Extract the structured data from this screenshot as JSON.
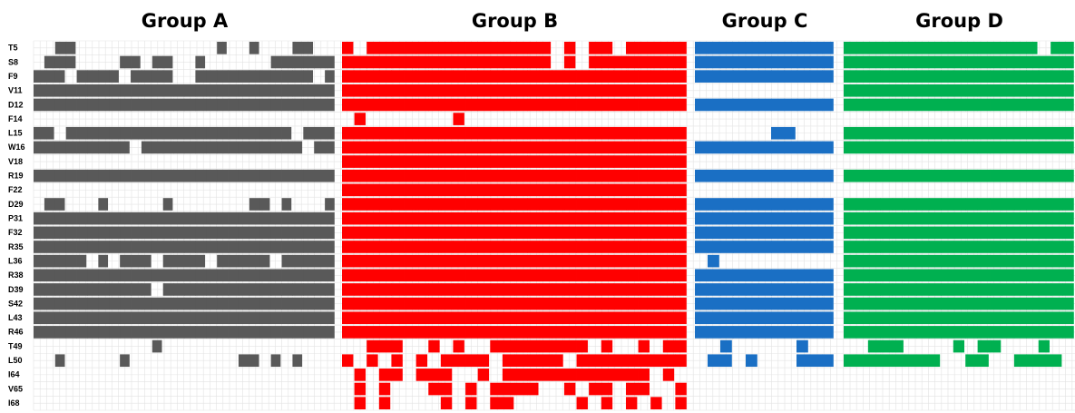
{
  "chart_data": {
    "type": "heatmap",
    "title": "",
    "xlabel": "",
    "ylabel": "",
    "row_labels": [
      "T5",
      "S8",
      "F9",
      "V11",
      "D12",
      "F14",
      "L15",
      "W16",
      "V18",
      "R19",
      "F22",
      "D29",
      "P31",
      "F32",
      "R35",
      "L36",
      "R38",
      "D39",
      "S42",
      "L43",
      "R46",
      "T49",
      "L50",
      "I64",
      "V65",
      "I68"
    ],
    "groups": [
      {
        "name": "Group A",
        "color": "#595959",
        "cols": 28,
        "rows": [
          "0011000000000000010010001100",
          "0111000011011001000000111111",
          "1110111101111001111111111101",
          "1111111111111111111111111111",
          "1111111111111111111111111111",
          "0000000000000000000000000000",
          "1101111111111111111111110111",
          "1111111110111111111111111011",
          "0000000000000000000000000000",
          "1111111111111111111111111111",
          "0000000000000000000000000000",
          "0110001000001000000011010001",
          "1111111111111111111111111111",
          "1111111111111111111111111111",
          "1111111111111111111111111111",
          "1111101011101111011111011111",
          "1111111111111111111111111111",
          "1111111111101111111111111111",
          "1111111111111111111111111111",
          "1111111111111111111111111111",
          "1111111111111111111111111111",
          "0000000000010000000000000000",
          "0010000010000000000110101000",
          "0000000000000000000000000000",
          "0000000000000000000000000000",
          "0000000000000000000000000000"
        ]
      },
      {
        "name": "Group B",
        "color": "#ff0000",
        "cols": 28,
        "rows": [
          "1011111111111111101011011111",
          "1111111111111111101011111111",
          "1111111111111111111111111111",
          "1111111111111111111111111111",
          "1111111111111111111111111111",
          "0100000001000000000000000000",
          "1111111111111111111111111111",
          "1111111111111111111111111111",
          "1111111111111111111111111111",
          "1111111111111111111111111111",
          "1111111111111111111111111111",
          "1111111111111111111111111111",
          "1111111111111111111111111111",
          "1111111111111111111111111111",
          "1111111111111111111111111111",
          "1111111111111111111111111111",
          "1111111111111111111111111111",
          "1111111111111111111111111111",
          "1111111111111111111111111111",
          "1111111111111111111111111111",
          "1111111111111111111111111111",
          "0011100101001111111101001011",
          "1010101011110111110111111111",
          "0101101110010111111111111010",
          "0101000110101111001011011001",
          "0101000010101100000101010101"
        ]
      },
      {
        "name": "Group C",
        "color": "#1a6fc4",
        "cols": 11,
        "rows": [
          "11111111111",
          "11111111111",
          "11111111111",
          "00000000000",
          "11111111111",
          "00000000000",
          "00000011000",
          "11111111111",
          "00000000000",
          "11111111111",
          "00000000000",
          "11111111111",
          "11111111111",
          "11111111111",
          "11111111111",
          "01000000000",
          "11111111111",
          "11111111111",
          "11111111111",
          "11111111111",
          "11111111111",
          "00100000100",
          "01101000111",
          "00000000000",
          "00000000000",
          "00000000000"
        ]
      },
      {
        "name": "Group D",
        "color": "#00b050",
        "cols": 19,
        "rows": [
          "1111111111111111011",
          "1111111111111111111",
          "1111111111111111111",
          "1111111111111111111",
          "1111111111111111111",
          "0000000000000000000",
          "1111111111111111111",
          "1111111111111111111",
          "0000000000000000000",
          "1111111111111111111",
          "0000000000000000000",
          "1111111111111111111",
          "1111111111111111111",
          "1111111111111111111",
          "1111111111111111111",
          "1111111111111111111",
          "1111111111111111111",
          "1111111111111111111",
          "1111111111111111111",
          "1111111111111111111",
          "1111111111111111111",
          "0011100001011000100",
          "1111111100110011110",
          "0000000000000000000",
          "0000000000000000000",
          "0000000000000000000"
        ]
      }
    ],
    "grid": true
  }
}
